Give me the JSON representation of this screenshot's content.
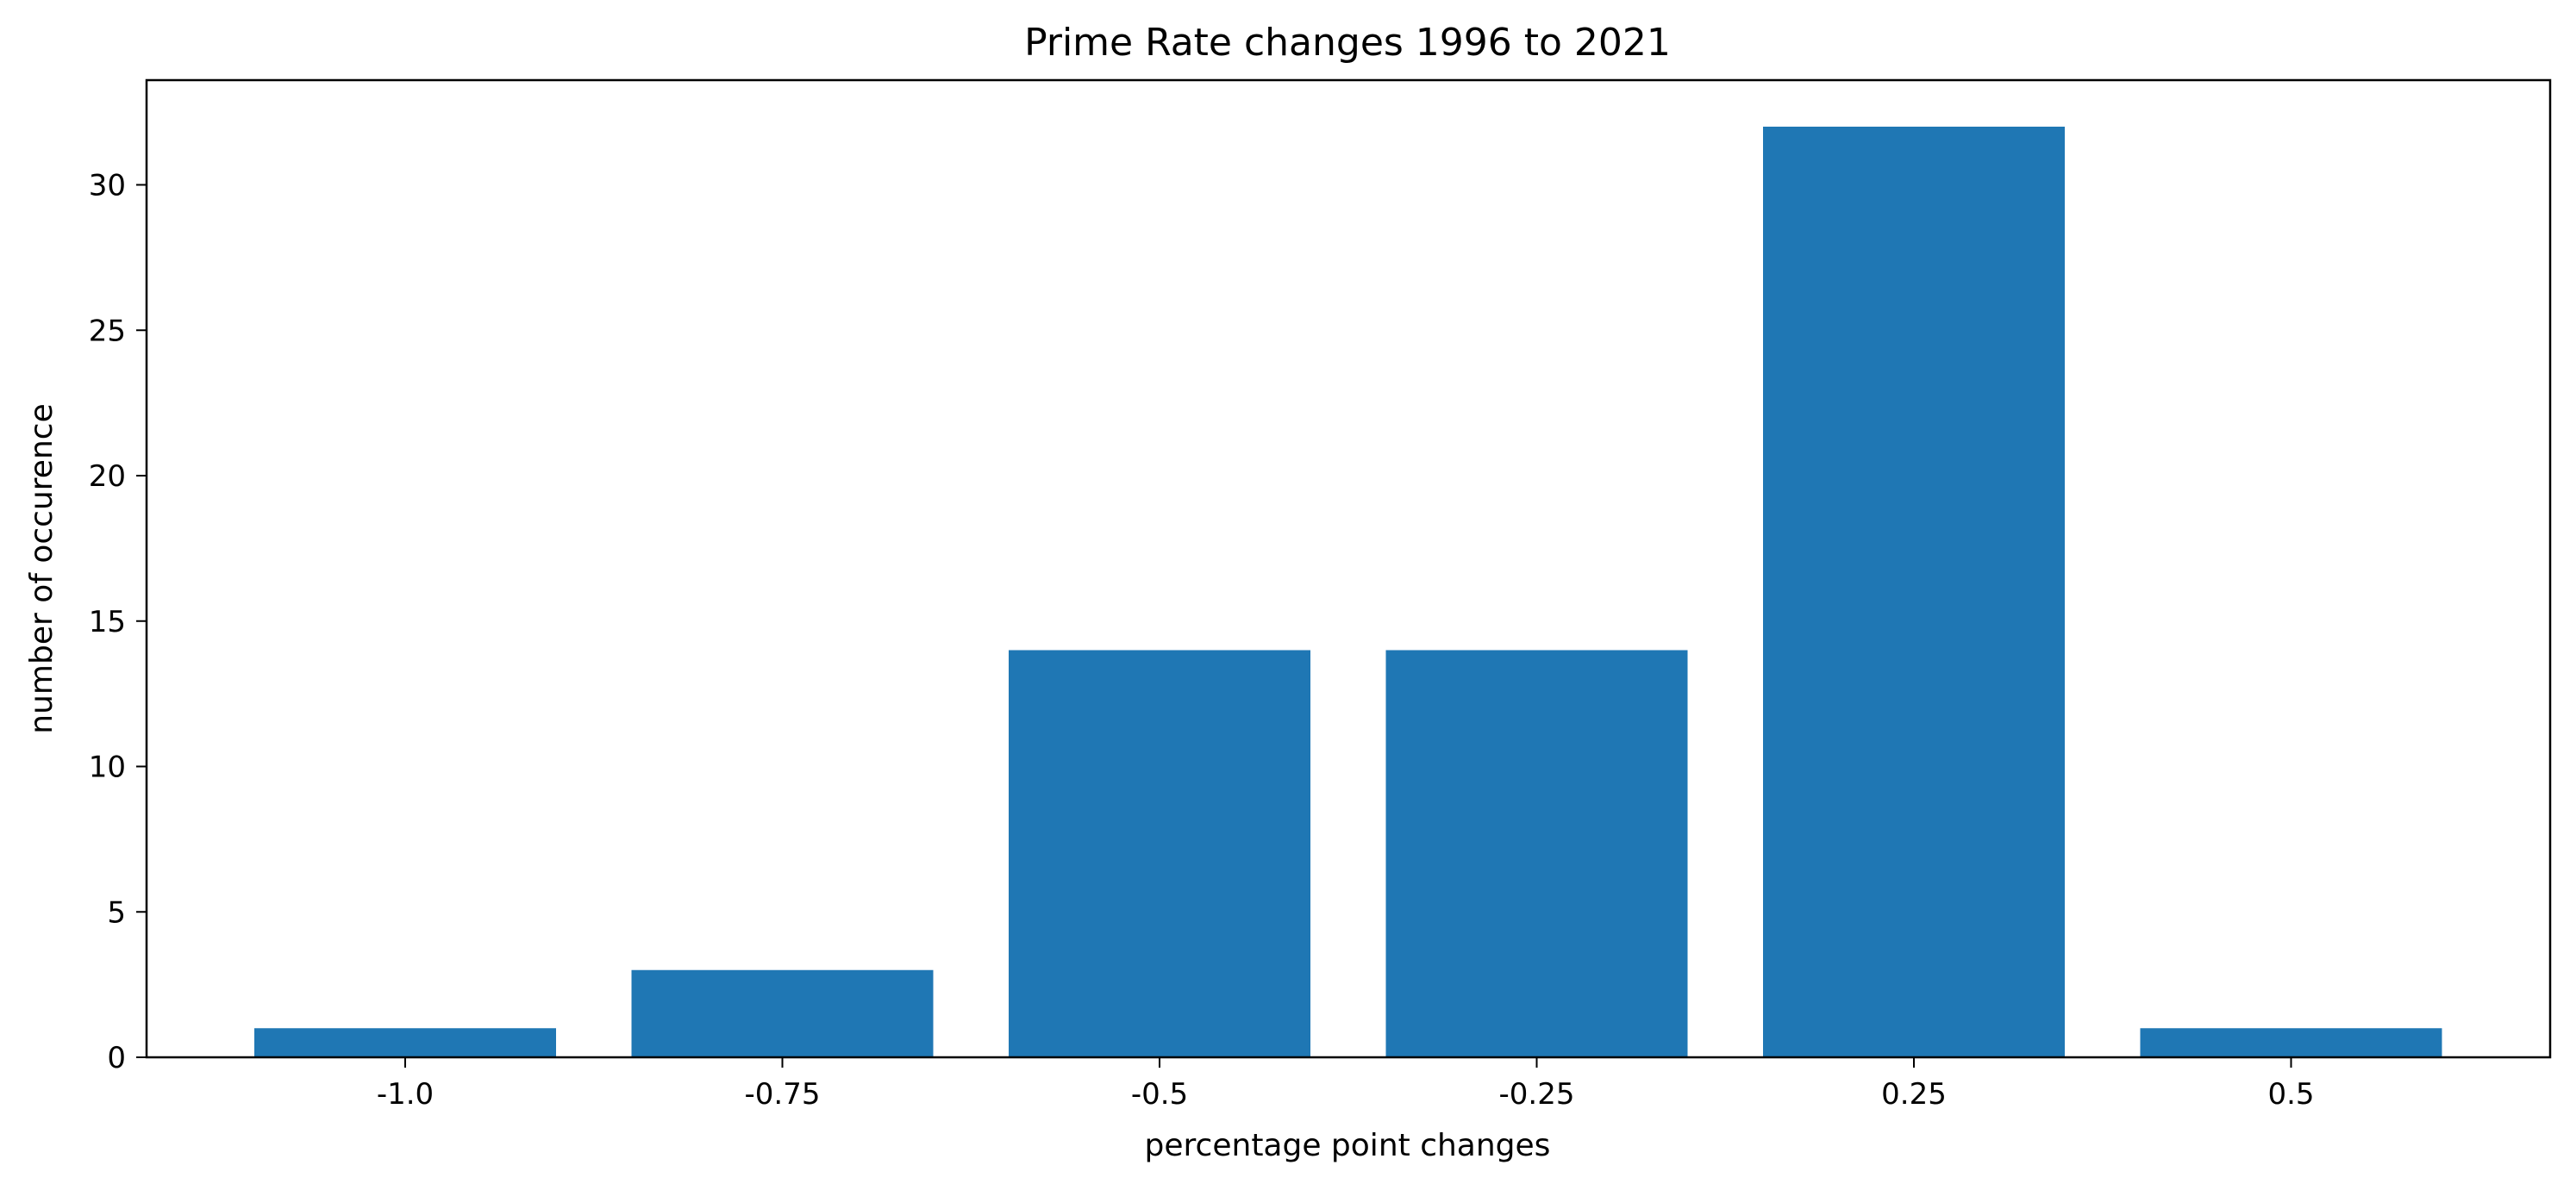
{
  "chart_data": {
    "type": "bar",
    "title": "Prime Rate changes 1996 to 2021",
    "xlabel": "percentage point changes",
    "ylabel": "number of occurence",
    "categories": [
      "-1.0",
      "-0.75",
      "-0.5",
      "-0.25",
      "0.25",
      "0.5"
    ],
    "values": [
      1,
      3,
      14,
      14,
      32,
      1
    ],
    "ylim": [
      0,
      33.6
    ],
    "yticks": [
      0,
      5,
      10,
      15,
      20,
      25,
      30
    ],
    "grid": false,
    "colors": {
      "bar": "#1f77b4",
      "axis": "#000000",
      "background": "#ffffff"
    }
  }
}
